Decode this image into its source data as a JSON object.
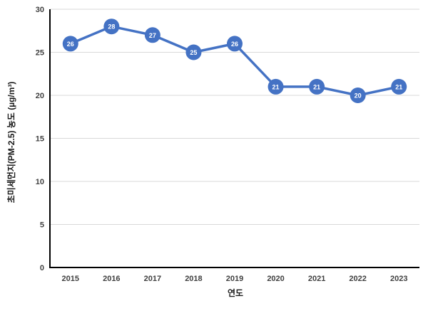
{
  "chart_data": {
    "type": "line",
    "title": "",
    "categories": [
      "2015",
      "2016",
      "2017",
      "2018",
      "2019",
      "2020",
      "2021",
      "2022",
      "2023"
    ],
    "series": [
      {
        "name": "초미세먼지(PM-2.5) 농도",
        "values": [
          26,
          28,
          27,
          25,
          26,
          21,
          21,
          20,
          21
        ]
      }
    ],
    "xlabel": "연도",
    "ylabel": "초미세먼지(PM-2.5) 농도 (µg/m³)",
    "ylim": [
      0,
      30
    ],
    "yticks": [
      0,
      5,
      10,
      15,
      20,
      25,
      30
    ],
    "grid": true,
    "legend_position": "none",
    "data_labels": "inside-marker",
    "colors": {
      "line": "#4472C4",
      "marker_fill": "#4472C4",
      "marker_label": "#FFFFFF",
      "gridline": "#D9D9D9",
      "axis_line": "#000000",
      "tick_label": "#3F3F3F",
      "axis_title": "#1A1A1A"
    }
  }
}
